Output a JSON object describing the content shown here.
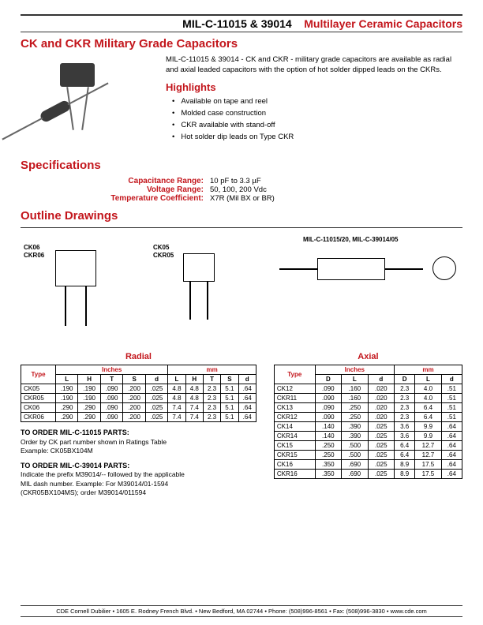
{
  "header": {
    "mil": "MIL-C-11015 & 39014",
    "product": "Multilayer Ceramic Capacitors"
  },
  "subtitle": "CK and CKR Military Grade Capacitors",
  "intro": "MIL-C-11015 & 39014 - CK and CKR - military grade capacitors are available as radial and axial leaded        capacitors  with the option of hot solder dipped leads on the CKRs.",
  "highlights_title": "Highlights",
  "highlights": [
    "Available on tape and reel",
    "Molded case construction",
    "CKR available with stand-off",
    "Hot solder dip leads on Type CKR"
  ],
  "specs_title": "Specifications",
  "specs": [
    {
      "label": "Capacitance Range:",
      "value": "10 pF to 3.3 µF"
    },
    {
      "label": "Voltage Range:",
      "value": "50, 100, 200 Vdc"
    },
    {
      "label": "Temperature Coefficient:",
      "value": "X7R (Mil BX or BR)"
    }
  ],
  "outline_title": "Outline Drawings",
  "drawing_labels": {
    "ck06": "CK06",
    "ckr06": "CKR06",
    "ck05": "CK05",
    "ckr05": "CKR05",
    "axial": "MIL-C-11015/20, MIL-C-39014/05"
  },
  "radial_table": {
    "title": "Radial",
    "group_headers": [
      "Type",
      "Inches",
      "mm"
    ],
    "col_headers": [
      "L",
      "H",
      "T",
      "S",
      "d",
      "L",
      "H",
      "T",
      "S",
      "d"
    ],
    "rows": [
      {
        "type": "CK05",
        "cells": [
          ".190",
          ".190",
          ".090",
          ".200",
          ".025",
          "4.8",
          "4.8",
          "2.3",
          "5.1",
          ".64"
        ]
      },
      {
        "type": "CKR05",
        "cells": [
          ".190",
          ".190",
          ".090",
          ".200",
          ".025",
          "4.8",
          "4.8",
          "2.3",
          "5.1",
          ".64"
        ]
      },
      {
        "type": "CK06",
        "cells": [
          ".290",
          ".290",
          ".090",
          ".200",
          ".025",
          "7.4",
          "7.4",
          "2.3",
          "5.1",
          ".64"
        ]
      },
      {
        "type": "CKR06",
        "cells": [
          ".290",
          ".290",
          ".090",
          ".200",
          ".025",
          "7.4",
          "7.4",
          "2.3",
          "5.1",
          ".64"
        ]
      }
    ],
    "colors": {
      "header_red": "#c3161c"
    }
  },
  "axial_table": {
    "title": "Axial",
    "group_headers": [
      "Type",
      "Inches",
      "mm"
    ],
    "col_headers": [
      "D",
      "L",
      "d",
      "D",
      "L",
      "d"
    ],
    "rows": [
      {
        "type": "CK12",
        "cells": [
          ".090",
          ".160",
          ".020",
          "2.3",
          "4.0",
          ".51"
        ]
      },
      {
        "type": "CKR11",
        "cells": [
          ".090",
          ".160",
          ".020",
          "2.3",
          "4.0",
          ".51"
        ]
      },
      {
        "type": "CK13",
        "cells": [
          ".090",
          ".250",
          ".020",
          "2.3",
          "6.4",
          ".51"
        ]
      },
      {
        "type": "CKR12",
        "cells": [
          ".090",
          ".250",
          ".020",
          "2.3",
          "6.4",
          ".51"
        ]
      },
      {
        "type": "CK14",
        "cells": [
          ".140",
          ".390",
          ".025",
          "3.6",
          "9.9",
          ".64"
        ]
      },
      {
        "type": "CKR14",
        "cells": [
          ".140",
          ".390",
          ".025",
          "3.6",
          "9.9",
          ".64"
        ]
      },
      {
        "type": "CK15",
        "cells": [
          ".250",
          ".500",
          ".025",
          "6.4",
          "12.7",
          ".64"
        ]
      },
      {
        "type": "CKR15",
        "cells": [
          ".250",
          ".500",
          ".025",
          "6.4",
          "12.7",
          ".64"
        ]
      },
      {
        "type": "CK16",
        "cells": [
          ".350",
          ".690",
          ".025",
          "8.9",
          "17.5",
          ".64"
        ]
      },
      {
        "type": "CKR16",
        "cells": [
          ".350",
          ".690",
          ".025",
          "8.9",
          "17.5",
          ".64"
        ]
      }
    ]
  },
  "order1": {
    "heading": "TO ORDER MIL-C-11015 PARTS:",
    "line1": "Order by CK part number shown in Ratings Table",
    "line2": "Example:  CK05BX104M"
  },
  "order2": {
    "heading": "TO ORDER MIL-C-39014 PARTS:",
    "line1": "Indicate the prefix M39014/-- followed by the applicable",
    "line2": "MIL dash number.  Example:  For M39014/01-1594",
    "line3": "(CKR05BX104MS); order M39014/011594"
  },
  "footer": "CDE Cornell Dubilier • 1605 E. Rodney French Blvd. • New Bedford, MA 02744 • Phone: (508)996-8561 • Fax: (508)996-3830 • www.cde.com"
}
